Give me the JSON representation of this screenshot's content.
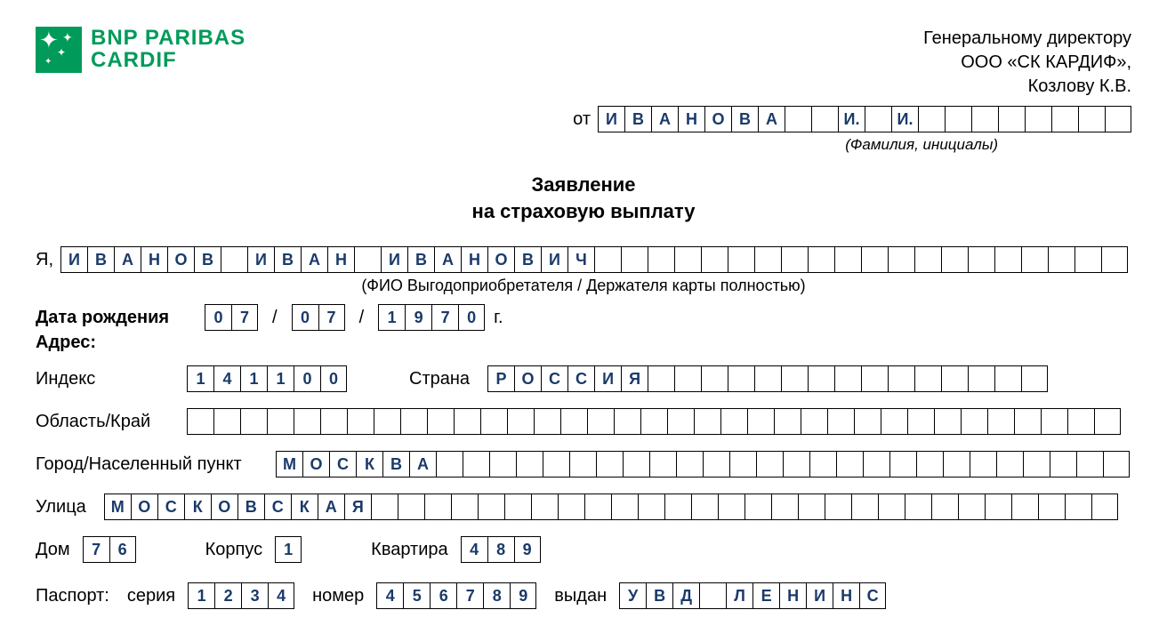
{
  "brand": {
    "line1": "BNP PARIBAS",
    "line2": "CARDIF",
    "logo_bg": "#009b5a"
  },
  "addressee": {
    "line1": "Генеральному директору",
    "line2": "ООО «СК КАРДИФ»,",
    "line3": "Козлову К.В."
  },
  "from": {
    "label": "от",
    "cells": [
      "И",
      "В",
      "А",
      "Н",
      "О",
      "В",
      "А",
      "",
      "",
      "И.",
      "",
      "И.",
      "",
      "",
      "",
      "",
      "",
      "",
      "",
      ""
    ],
    "hint": "(Фамилия, инициалы)"
  },
  "title": {
    "line1": "Заявление",
    "line2": "на страховую выплату"
  },
  "fullname": {
    "prefix": "Я,",
    "cells": [
      "И",
      "В",
      "А",
      "Н",
      "О",
      "В",
      "",
      "И",
      "В",
      "А",
      "Н",
      "",
      "И",
      "В",
      "А",
      "Н",
      "О",
      "В",
      "И",
      "Ч",
      "",
      "",
      "",
      "",
      "",
      "",
      "",
      "",
      "",
      "",
      "",
      "",
      "",
      "",
      "",
      "",
      "",
      "",
      "",
      ""
    ],
    "hint": "(ФИО Выгодоприобретателя / Держателя карты полностью)"
  },
  "dob": {
    "label": "Дата рождения",
    "day": [
      "0",
      "7"
    ],
    "month": [
      "0",
      "7"
    ],
    "year": [
      "1",
      "9",
      "7",
      "0"
    ],
    "suffix": "г."
  },
  "address_label": "Адрес:",
  "postcode": {
    "label": "Индекс",
    "cells": [
      "1",
      "4",
      "1",
      "1",
      "0",
      "0"
    ]
  },
  "country": {
    "label": "Страна",
    "cells": [
      "Р",
      "О",
      "С",
      "С",
      "И",
      "Я",
      "",
      "",
      "",
      "",
      "",
      "",
      "",
      "",
      "",
      "",
      "",
      "",
      "",
      "",
      ""
    ]
  },
  "region": {
    "label": "Область/Край",
    "cells": [
      "",
      "",
      "",
      "",
      "",
      "",
      "",
      "",
      "",
      "",
      "",
      "",
      "",
      "",
      "",
      "",
      "",
      "",
      "",
      "",
      "",
      "",
      "",
      "",
      "",
      "",
      "",
      "",
      "",
      "",
      "",
      "",
      "",
      "",
      ""
    ]
  },
  "city": {
    "label": "Город/Населенный пункт",
    "cells": [
      "М",
      "О",
      "С",
      "К",
      "В",
      "А",
      "",
      "",
      "",
      "",
      "",
      "",
      "",
      "",
      "",
      "",
      "",
      "",
      "",
      "",
      "",
      "",
      "",
      "",
      "",
      "",
      "",
      "",
      "",
      "",
      "",
      ""
    ]
  },
  "street": {
    "label": "Улица",
    "cells": [
      "М",
      "О",
      "С",
      "К",
      "О",
      "В",
      "С",
      "К",
      "А",
      "Я",
      "",
      "",
      "",
      "",
      "",
      "",
      "",
      "",
      "",
      "",
      "",
      "",
      "",
      "",
      "",
      "",
      "",
      "",
      "",
      "",
      "",
      "",
      "",
      "",
      "",
      "",
      "",
      ""
    ]
  },
  "house": {
    "label": "Дом",
    "cells": [
      "7",
      "6"
    ]
  },
  "building": {
    "label": "Корпус",
    "cells": [
      "1"
    ]
  },
  "apartment": {
    "label": "Квартира",
    "cells": [
      "4",
      "8",
      "9"
    ]
  },
  "passport": {
    "label": "Паспорт:",
    "series_label": "серия",
    "series": [
      "1",
      "2",
      "3",
      "4"
    ],
    "number_label": "номер",
    "number": [
      "4",
      "5",
      "6",
      "7",
      "8",
      "9"
    ],
    "issued_label": "выдан",
    "issued": [
      "У",
      "В",
      "Д",
      "",
      "Л",
      "Е",
      "Н",
      "И",
      "Н",
      "С"
    ]
  },
  "colors": {
    "text_fill": "#1a3a6a",
    "border": "#000000",
    "bg": "#ffffff"
  }
}
